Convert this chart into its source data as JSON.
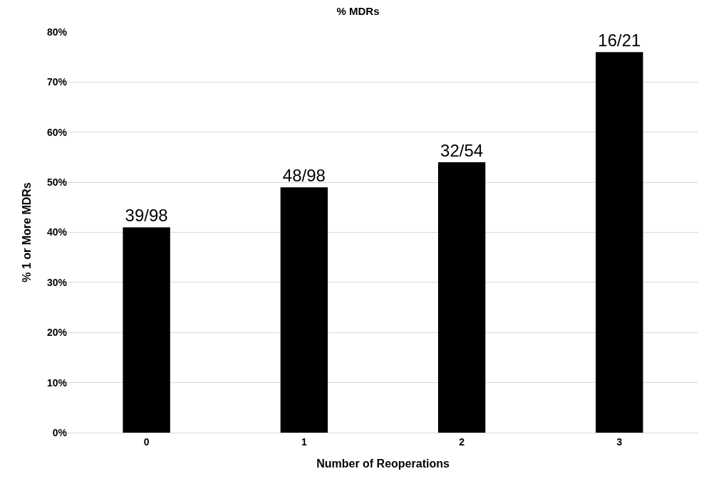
{
  "chart_data": {
    "type": "bar",
    "title": "% MDRs",
    "xlabel": "Number of Reoperations",
    "ylabel": "% 1 or More MDRs",
    "categories": [
      "0",
      "1",
      "2",
      "3"
    ],
    "values": [
      41,
      49,
      54,
      76
    ],
    "value_labels": [
      "39/98",
      "48/98",
      "32/54",
      "16/21"
    ],
    "color": "#000000",
    "ylim": [
      0,
      80
    ],
    "yticks": [
      {
        "value": 0,
        "label": "0%"
      },
      {
        "value": 10,
        "label": "10%"
      },
      {
        "value": 20,
        "label": "20%"
      },
      {
        "value": 30,
        "label": "30%"
      },
      {
        "value": 40,
        "label": "40%"
      },
      {
        "value": 50,
        "label": "50%"
      },
      {
        "value": 60,
        "label": "60%"
      },
      {
        "value": 70,
        "label": "70%"
      },
      {
        "value": 80,
        "label": "80%"
      }
    ],
    "grid": "y",
    "legend": false
  }
}
